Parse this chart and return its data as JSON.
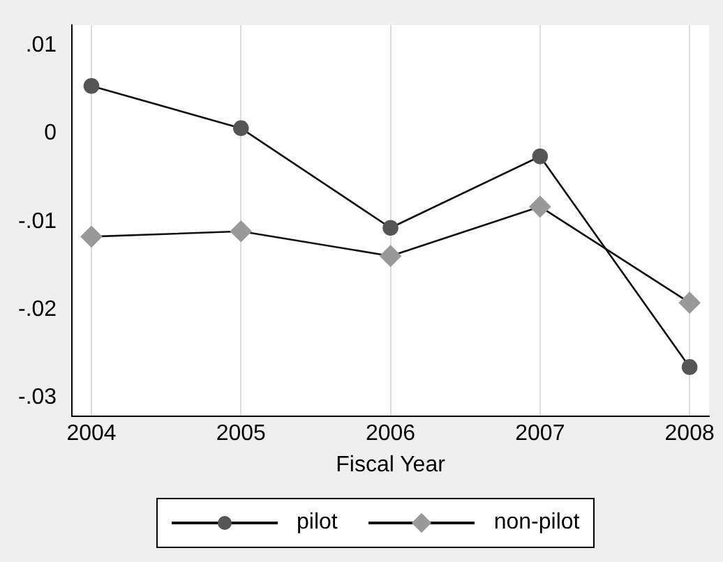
{
  "chart_data": {
    "type": "line",
    "xlabel": "Fiscal Year",
    "x": [
      2004,
      2005,
      2006,
      2007,
      2008
    ],
    "series": [
      {
        "name": "pilot",
        "color": "#555555",
        "marker": "circle",
        "values": [
          0.0054,
          0.0006,
          -0.0107,
          -0.0026,
          -0.0265
        ]
      },
      {
        "name": "non-pilot",
        "color": "#999999",
        "marker": "diamond",
        "values": [
          -0.0117,
          -0.0111,
          -0.0139,
          -0.0083,
          -0.0192
        ]
      }
    ],
    "xlim": [
      2003.87,
      2008.13
    ],
    "xticks": [
      2004,
      2005,
      2006,
      2007,
      2008
    ],
    "ylim": [
      -0.0321,
      0.0123
    ],
    "yticks": [
      {
        "value": 0.01,
        "label": ".01"
      },
      0,
      {
        "value": -0.01,
        "label": "-.01"
      },
      {
        "value": -0.02,
        "label": "-.02"
      },
      {
        "value": -0.03,
        "label": "-.03"
      }
    ],
    "grid": "x",
    "legend": "bottom",
    "line_style": "solid"
  }
}
